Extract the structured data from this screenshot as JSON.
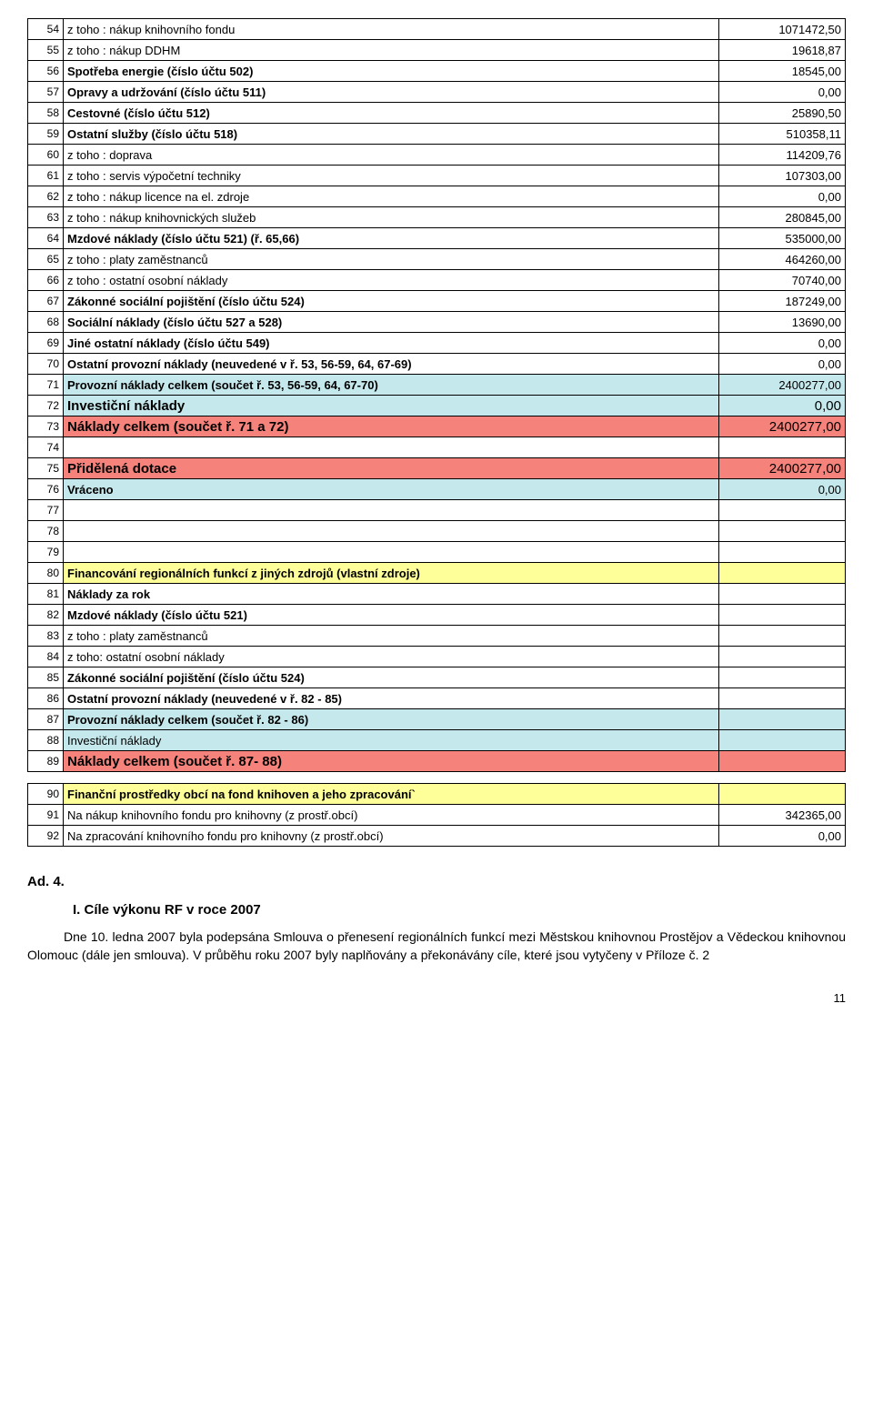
{
  "rows1": [
    {
      "n": "54",
      "label": " z toho : nákup knihovního fondu",
      "val": "1071472,50"
    },
    {
      "n": "55",
      "label": " z toho : nákup DDHM",
      "val": "19618,87"
    },
    {
      "n": "56",
      "label": "Spotřeba energie (číslo účtu 502)",
      "val": "18545,00",
      "bold": true
    },
    {
      "n": "57",
      "label": "Opravy a udržování (číslo účtu 511)",
      "val": "0,00",
      "bold": true
    },
    {
      "n": "58",
      "label": "Cestovné (číslo účtu 512)",
      "val": "25890,50",
      "bold": true
    },
    {
      "n": "59",
      "label": "Ostatní služby (číslo účtu 518)",
      "val": "510358,11",
      "bold": true
    },
    {
      "n": "60",
      "label": " z toho : doprava",
      "val": "114209,76"
    },
    {
      "n": "61",
      "label": " z toho : servis výpočetní techniky",
      "val": "107303,00"
    },
    {
      "n": "62",
      "label": " z toho : nákup licence na el. zdroje",
      "val": "0,00"
    },
    {
      "n": "63",
      "label": " z toho : nákup knihovnických služeb",
      "val": "280845,00"
    },
    {
      "n": "64",
      "label": "Mzdové náklady (číslo účtu 521) (ř. 65,66)",
      "val": "535000,00",
      "bold": true
    },
    {
      "n": "65",
      "label": " z toho : platy zaměstnanců",
      "val": "464260,00"
    },
    {
      "n": "66",
      "label": " z toho : ostatní osobní náklady",
      "val": "70740,00"
    },
    {
      "n": "67",
      "label": "Zákonné sociální pojištění (číslo účtu 524)",
      "val": "187249,00",
      "bold": true
    },
    {
      "n": "68",
      "label": "Sociální náklady (číslo účtu 527 a 528)",
      "val": "13690,00",
      "bold": true
    },
    {
      "n": "69",
      "label": "Jiné ostatní náklady (číslo účtu 549)",
      "val": "0,00",
      "bold": true
    },
    {
      "n": "70",
      "label": "Ostatní provozní náklady (neuvedené v ř. 53, 56-59, 64, 67-69)",
      "val": "0,00",
      "bold": true
    },
    {
      "n": "71",
      "label": "Provozní náklady celkem (součet ř. 53, 56-59, 64, 67-70)",
      "val": "2400277,00",
      "bold": true,
      "bg": "bg-blue"
    },
    {
      "n": "72",
      "label": "Investiční náklady",
      "val": "0,00",
      "bold": true,
      "bg": "bg-blue",
      "big": true
    },
    {
      "n": "73",
      "label": "Náklady celkem (součet ř. 71 a 72)",
      "val": "2400277,00",
      "bold": true,
      "bg": "bg-red",
      "big": true
    },
    {
      "n": "74",
      "label": "",
      "val": ""
    },
    {
      "n": "75",
      "label": "Přidělená dotace",
      "val": "2400277,00",
      "bold": true,
      "bg": "bg-red",
      "big": true
    },
    {
      "n": "76",
      "label": "Vráceno",
      "val": "0,00",
      "bold": true,
      "bg": "bg-blue"
    },
    {
      "n": "77",
      "label": "",
      "val": ""
    },
    {
      "n": "78",
      "label": "",
      "val": ""
    },
    {
      "n": "79",
      "label": "",
      "val": ""
    },
    {
      "n": "80",
      "label": "Financování regionálních funkcí z jiných zdrojů (vlastní zdroje)",
      "val": "",
      "bold": true,
      "bg": "bg-yellow"
    },
    {
      "n": "81",
      "label": "Náklady za rok",
      "val": "",
      "bold": true
    },
    {
      "n": "82",
      "label": "Mzdové náklady (číslo účtu 521)",
      "val": "",
      "bold": true
    },
    {
      "n": "83",
      "label": " z toho : platy zaměstnanců",
      "val": ""
    },
    {
      "n": "84",
      "label": " z toho: ostatní osobní náklady",
      "val": ""
    },
    {
      "n": "85",
      "label": "Zákonné sociální pojištění (číslo účtu 524)",
      "val": "",
      "bold": true
    },
    {
      "n": "86",
      "label": "Ostatní provozní náklady (neuvedené v ř. 82 - 85)",
      "val": "",
      "bold": true
    },
    {
      "n": "87",
      "label": "Provozní náklady celkem (součet ř. 82 - 86)",
      "val": "",
      "bold": true,
      "bg": "bg-blue"
    },
    {
      "n": "88",
      "label": "Investiční náklady",
      "val": "",
      "bg": "bg-blue"
    },
    {
      "n": "89",
      "label": "Náklady celkem (součet ř. 87- 88)",
      "val": "",
      "bold": true,
      "bg": "bg-red",
      "big": true
    }
  ],
  "rows2": [
    {
      "n": "90",
      "label": "Finanční prostředky obcí na fond knihoven a jeho zpracování`",
      "val": "",
      "bold": true,
      "bg": "bg-yellow"
    },
    {
      "n": "91",
      "label": "Na nákup knihovního fondu pro  knihovny (z prostř.obcí)",
      "val": "342365,00"
    },
    {
      "n": "92",
      "label": "Na zpracování knihovního fondu pro knihovny (z prostř.obcí)",
      "val": "0,00"
    }
  ],
  "text": {
    "ad4": "Ad. 4.",
    "cile": "I. Cíle výkonu RF v roce 2007",
    "para": "Dne 10. ledna 2007 byla podepsána Smlouva o přenesení regionálních funkcí mezi Městskou knihovnou Prostějov a Vědeckou knihovnou Olomouc (dále jen smlouva). V průběhu roku 2007 byly naplňovány a překonávány cíle, které jsou vytyčeny v Příloze č. 2",
    "pagenum": "11"
  }
}
